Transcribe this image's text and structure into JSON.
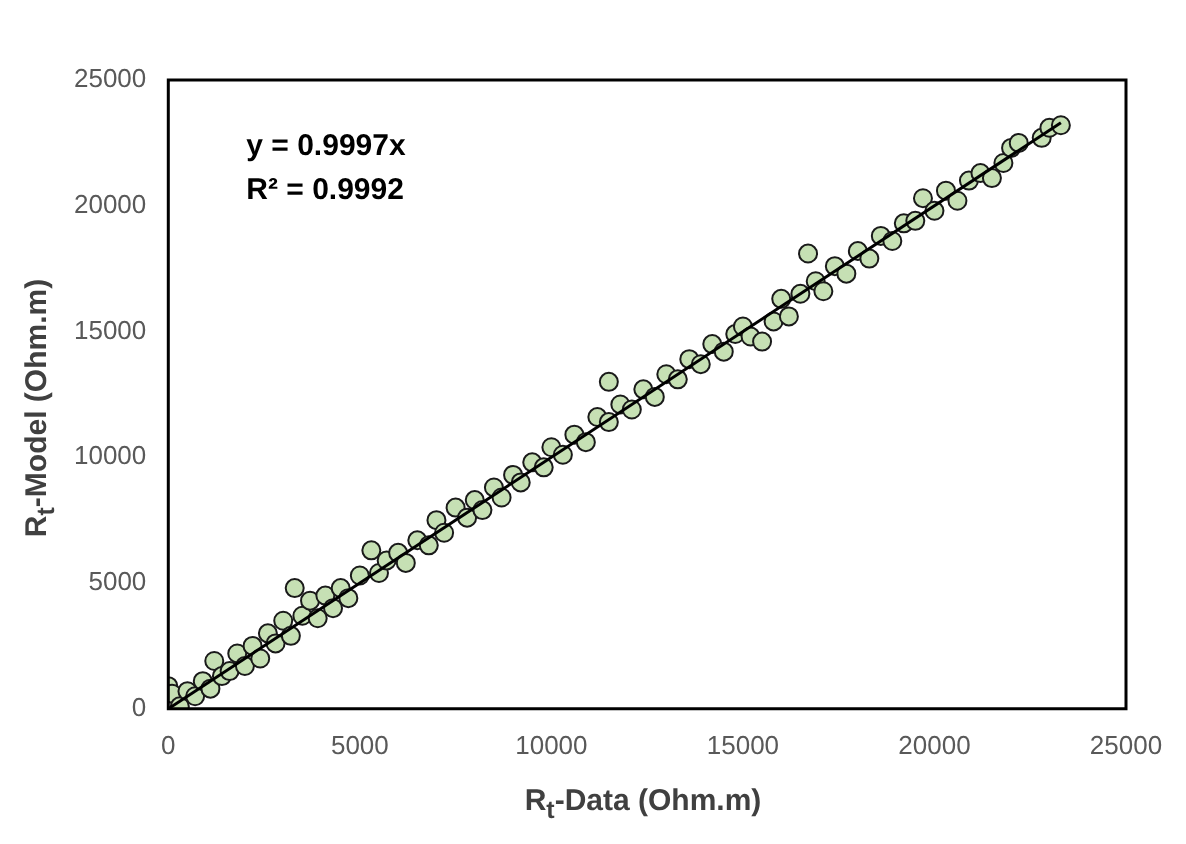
{
  "chart_data": {
    "type": "scatter",
    "xlabel": "R$_{t}$-Data (Ohm.m)",
    "ylabel": "R$_{t}$-Model (Ohm.m)",
    "annotations": [
      "y = 0.9997x",
      "R² = 0.9992"
    ],
    "xlim": [
      0,
      25000
    ],
    "ylim": [
      0,
      25000
    ],
    "xticks": [
      0,
      5000,
      10000,
      15000,
      20000,
      25000
    ],
    "yticks": [
      0,
      5000,
      10000,
      15000,
      20000,
      25000
    ],
    "grid": false,
    "legend": false,
    "marker": "circle",
    "series": [
      {
        "color": "#c6e0b4",
        "x": [
          0,
          100,
          300,
          500,
          700,
          900,
          1100,
          1200,
          1400,
          1600,
          1800,
          2000,
          2200,
          2400,
          2600,
          2800,
          3000,
          3200,
          3300,
          3500,
          3700,
          3900,
          4100,
          4300,
          4500,
          4700,
          5000,
          5300,
          5500,
          5700,
          6000,
          6200,
          6500,
          6800,
          7000,
          7200,
          7500,
          7800,
          8000,
          8200,
          8500,
          8700,
          9000,
          9200,
          9500,
          9800,
          10000,
          10300,
          10600,
          10900,
          11200,
          11500,
          11500,
          11800,
          12100,
          12400,
          12700,
          13000,
          13300,
          13600,
          13900,
          14200,
          14500,
          14800,
          15000,
          15200,
          15500,
          15800,
          16000,
          16200,
          16500,
          16700,
          16900,
          17100,
          17400,
          17700,
          18000,
          18300,
          18600,
          18900,
          19200,
          19500,
          19700,
          20000,
          20300,
          20600,
          20900,
          21200,
          21500,
          21800,
          22000,
          22200,
          22800,
          23000,
          23300
        ],
        "values": [
          900,
          600,
          100,
          700,
          500,
          1100,
          800,
          1900,
          1300,
          1500,
          2200,
          1700,
          2500,
          2000,
          3000,
          2600,
          3500,
          2900,
          4800,
          3700,
          4300,
          3600,
          4500,
          4000,
          4800,
          4400,
          5300,
          6300,
          5400,
          5900,
          6200,
          5800,
          6700,
          6500,
          7500,
          7000,
          8000,
          7600,
          8300,
          7900,
          8800,
          8400,
          9300,
          9000,
          9800,
          9600,
          10400,
          10100,
          10900,
          10600,
          11600,
          13000,
          11400,
          12100,
          11900,
          12700,
          12400,
          13300,
          13100,
          13900,
          13700,
          14500,
          14200,
          14900,
          15200,
          14800,
          14600,
          15400,
          16300,
          15600,
          16500,
          18100,
          17000,
          16600,
          17600,
          17300,
          18200,
          17900,
          18800,
          18600,
          19300,
          19400,
          20300,
          19800,
          20600,
          20200,
          21000,
          21300,
          21100,
          21700,
          22300,
          22500,
          22700,
          23100,
          23200
        ]
      },
      {
        "type": "line",
        "color": "#000000",
        "x": [
          0,
          23300
        ],
        "values": [
          0,
          23300
        ],
        "marker": "none"
      }
    ]
  }
}
